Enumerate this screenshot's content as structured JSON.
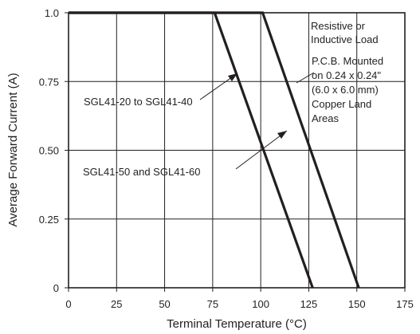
{
  "chart_data": {
    "type": "line",
    "xlabel": "Terminal Temperature (°C)",
    "ylabel": "Average Forward Current (A)",
    "xlim": [
      0,
      175
    ],
    "ylim": [
      0,
      1.0
    ],
    "x_ticks": [
      "0",
      "25",
      "50",
      "75",
      "100",
      "125",
      "150",
      "175"
    ],
    "y_ticks": [
      "0",
      "0.25",
      "0.50",
      "0.75",
      "1.0"
    ],
    "grid": true,
    "series": [
      {
        "name": "SGL41-50 and SGL41-60",
        "x": [
          0,
          76,
          127
        ],
        "y": [
          1.0,
          1.0,
          0
        ]
      },
      {
        "name": "SGL41-20 to SGL41-40",
        "x": [
          0,
          101,
          151
        ],
        "y": [
          1.0,
          1.0,
          0
        ]
      }
    ],
    "annotations": {
      "load_lines": [
        "Resistive or",
        "Inductive Load"
      ],
      "mount_lines": [
        "P.C.B. Mounted",
        "on 0.24 x 0.24\"",
        "(6.0 x 6.0 mm)",
        "Copper Land",
        "Areas"
      ]
    }
  }
}
